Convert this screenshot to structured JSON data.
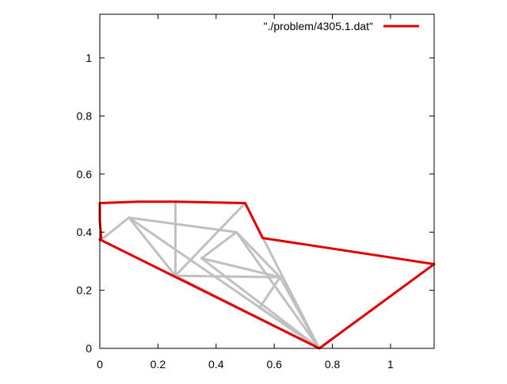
{
  "chart_data": {
    "type": "line",
    "title": "",
    "xlabel": "",
    "ylabel": "",
    "xlim": [
      0,
      1.15
    ],
    "ylim": [
      0,
      1.15
    ],
    "x_ticks": [
      0,
      0.2,
      0.4,
      0.6,
      0.8,
      1
    ],
    "x_tick_labels": [
      "0",
      "0.2",
      "0.4",
      "0.6",
      "0.8",
      "1"
    ],
    "y_ticks": [
      0,
      0.2,
      0.4,
      0.6,
      0.8,
      1
    ],
    "y_tick_labels": [
      "0",
      "0.2",
      "0.4",
      "0.6",
      "0.8",
      "1"
    ],
    "grid": false,
    "legend_position": "top-right",
    "series": [
      {
        "name": "\"./problem/4305.1.dat\"",
        "color": "#e00000",
        "points": [
          [
            0,
            0.44
          ],
          [
            0,
            0.5
          ],
          [
            0.13,
            0.505
          ],
          [
            0.26,
            0.505
          ],
          [
            0.5,
            0.5
          ],
          [
            0.56,
            0.38
          ],
          [
            1.15,
            0.29
          ],
          [
            0.755,
            0
          ],
          [
            0,
            0.375
          ],
          [
            0.005,
            0.38
          ],
          [
            0,
            0.44
          ]
        ]
      }
    ],
    "mesh": {
      "color": "#c0c0c0",
      "segments": [
        [
          [
            0,
            0.37
          ],
          [
            0.1,
            0.45
          ]
        ],
        [
          [
            0.1,
            0.45
          ],
          [
            0.26,
            0.25
          ]
        ],
        [
          [
            0.1,
            0.45
          ],
          [
            0.47,
            0.4
          ]
        ],
        [
          [
            0.1,
            0.45
          ],
          [
            0.755,
            0
          ]
        ],
        [
          [
            0.26,
            0.5
          ],
          [
            0.26,
            0.25
          ]
        ],
        [
          [
            0.26,
            0.25
          ],
          [
            0.5,
            0.5
          ]
        ],
        [
          [
            0.26,
            0.25
          ],
          [
            0.62,
            0.245
          ]
        ],
        [
          [
            0.26,
            0.25
          ],
          [
            0.755,
            0
          ]
        ],
        [
          [
            0.35,
            0.31
          ],
          [
            0.47,
            0.4
          ]
        ],
        [
          [
            0.35,
            0.31
          ],
          [
            0.62,
            0.245
          ]
        ],
        [
          [
            0.35,
            0.31
          ],
          [
            0.755,
            0
          ]
        ],
        [
          [
            0.47,
            0.4
          ],
          [
            0.62,
            0.245
          ]
        ],
        [
          [
            0.5,
            0.5
          ],
          [
            0.755,
            0
          ]
        ],
        [
          [
            0.47,
            0.4
          ],
          [
            0.755,
            0
          ]
        ],
        [
          [
            0.62,
            0.245
          ],
          [
            0.55,
            0.14
          ]
        ],
        [
          [
            0.62,
            0.245
          ],
          [
            0.755,
            0
          ]
        ],
        [
          [
            0.55,
            0.14
          ],
          [
            0.755,
            0
          ]
        ],
        [
          [
            1.15,
            0.29
          ],
          [
            0.755,
            0
          ]
        ]
      ]
    }
  }
}
